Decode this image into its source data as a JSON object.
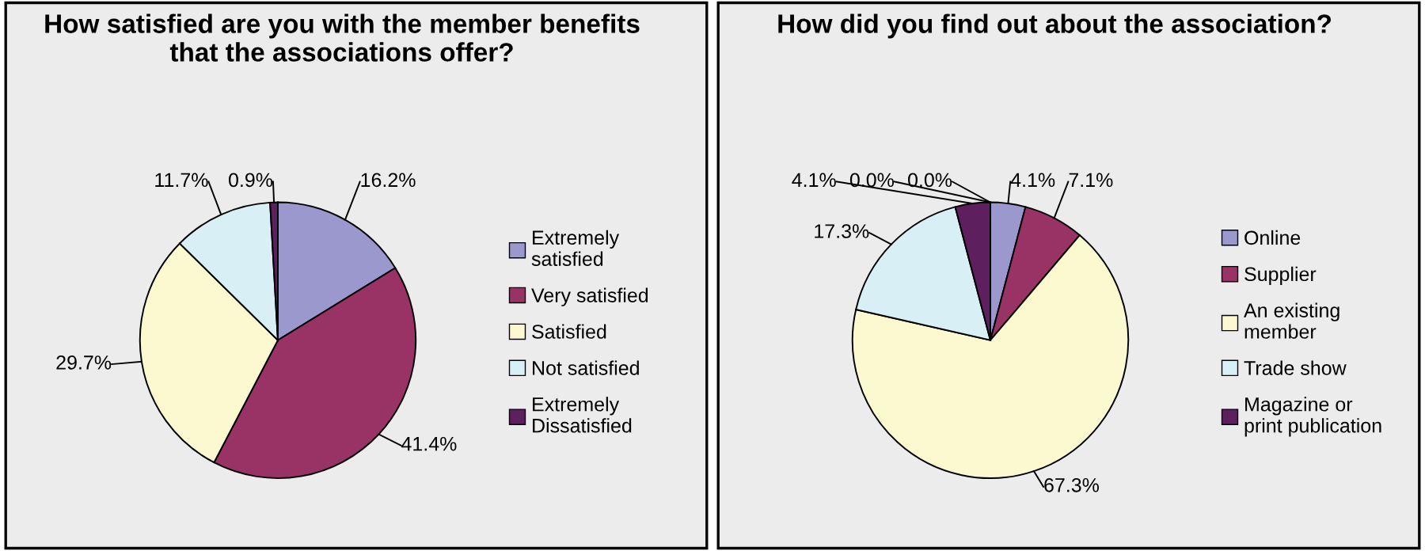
{
  "chart_data": [
    {
      "type": "pie",
      "title": "How satisfied are you with the member benefits\nthat the associations offer?",
      "categories": [
        "Extremely\nsatisfied",
        "Very satisfied",
        "Satisfied",
        "Not satisfied",
        "Extremely\nDissatisfied"
      ],
      "values": [
        16.2,
        41.4,
        29.7,
        11.7,
        0.9
      ],
      "value_labels": [
        "16.2%",
        "41.4%",
        "29.7%",
        "11.7%",
        "0.9%"
      ],
      "colors": [
        "#9a98cc",
        "#993366",
        "#fcf8d0",
        "#d8eff5",
        "#5e1f5e"
      ],
      "legend": "right"
    },
    {
      "type": "pie",
      "title": "How did you find out about the association?",
      "categories": [
        "Online",
        "Supplier",
        "An existing\nmember",
        "Trade show",
        "Magazine or\nprint publication",
        null,
        null
      ],
      "values": [
        4.1,
        7.1,
        67.3,
        17.3,
        4.1,
        0.0,
        0.0
      ],
      "value_labels": [
        "4.1%",
        "7.1%",
        "67.3%",
        "17.3%",
        "4.1%",
        "0.0%",
        "0.0%"
      ],
      "colors": [
        "#9a98cc",
        "#993366",
        "#fcf8d0",
        "#d8eff5",
        "#5e1f5e",
        "#9a98cc",
        "#993366"
      ],
      "legend": "right"
    }
  ]
}
